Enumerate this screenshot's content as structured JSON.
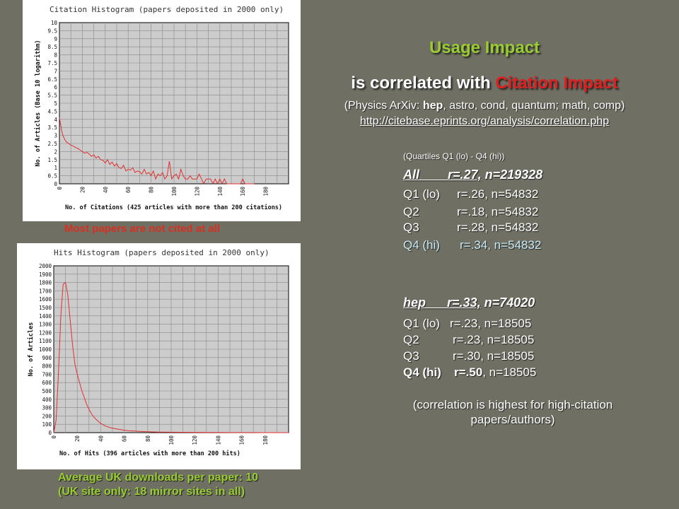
{
  "chart_data": [
    {
      "type": "line",
      "title": "Citation Histogram (papers deposited in 2000 only)",
      "xlabel": "No. of Citations (425 articles with more than 200 citations)",
      "ylabel": "No. of Articles (Base 10 logarithm)",
      "xlim": [
        0,
        200
      ],
      "ylim": [
        0,
        10
      ],
      "xticks": [
        "0",
        "20",
        "40",
        "60",
        "80",
        "100",
        "120",
        "140",
        "160",
        "180"
      ],
      "yticks": [
        "0",
        "0.5",
        "1",
        "1.5",
        "2",
        "2.5",
        "3",
        "3.5",
        "4",
        "4.5",
        "5",
        "5.5",
        "6",
        "6.5",
        "7",
        "7.5",
        "8",
        "8.5",
        "9",
        "9.5",
        "10"
      ],
      "grid": true,
      "series": [
        {
          "color": "#e03030",
          "x": [
            0,
            1,
            2,
            3,
            4,
            5,
            6,
            8,
            10,
            12,
            14,
            16,
            18,
            20,
            22,
            24,
            26,
            28,
            30,
            32,
            34,
            36,
            38,
            40,
            42,
            44,
            46,
            48,
            50,
            52,
            54,
            56,
            58,
            60,
            62,
            64,
            66,
            68,
            70,
            72,
            74,
            76,
            78,
            80,
            82,
            84,
            86,
            88,
            90,
            92,
            94,
            96,
            98,
            100,
            102,
            104,
            106,
            108,
            110,
            112,
            114,
            116,
            118,
            120,
            122,
            124,
            126,
            128,
            130,
            132,
            134,
            136,
            138,
            140,
            142,
            144,
            146,
            148,
            150,
            152,
            154,
            156,
            158,
            160,
            162,
            164,
            166,
            168,
            170
          ],
          "y": [
            4.1,
            3.7,
            3.3,
            3.0,
            2.85,
            2.7,
            2.6,
            2.5,
            2.4,
            2.35,
            2.25,
            2.2,
            2.1,
            2.0,
            1.9,
            1.95,
            1.85,
            1.7,
            1.8,
            1.6,
            1.7,
            1.5,
            1.45,
            1.3,
            1.5,
            1.2,
            1.35,
            1.1,
            1.25,
            1.0,
            0.95,
            1.15,
            0.8,
            0.9,
            0.85,
            1.0,
            0.7,
            0.8,
            0.75,
            0.6,
            0.9,
            0.6,
            0.7,
            0.5,
            0.8,
            0.3,
            0.6,
            0.5,
            0.7,
            0.3,
            0.5,
            1.4,
            0.3,
            0.5,
            0.6,
            0.3,
            0.9,
            0.5,
            0.3,
            0.3,
            0.5,
            0.3,
            0.3,
            0.3,
            0.6,
            0.3,
            0,
            0.3,
            0.3,
            0.3,
            0,
            0.3,
            0,
            0.3,
            0,
            0.3,
            0,
            0,
            0,
            0,
            0,
            0,
            0,
            0.3,
            0,
            0,
            0,
            0,
            0
          ]
        }
      ]
    },
    {
      "type": "line",
      "title": "Hits Histogram (papers deposited in 2000 only)",
      "xlabel": "No. of Hits (396 articles with more than 200 hits)",
      "ylabel": "No. of Articles",
      "xlim": [
        0,
        200
      ],
      "ylim": [
        0,
        2000
      ],
      "xticks": [
        "0",
        "20",
        "40",
        "60",
        "80",
        "100",
        "120",
        "140",
        "160",
        "180"
      ],
      "yticks": [
        "0",
        "100",
        "200",
        "300",
        "400",
        "500",
        "600",
        "700",
        "800",
        "900",
        "1000",
        "1100",
        "1200",
        "1300",
        "1400",
        "1500",
        "1600",
        "1700",
        "1800",
        "1900",
        "2000"
      ],
      "grid": true,
      "series": [
        {
          "color": "#e03030",
          "x": [
            0,
            2,
            4,
            6,
            8,
            10,
            12,
            14,
            16,
            18,
            20,
            22,
            24,
            26,
            28,
            30,
            32,
            34,
            36,
            38,
            40,
            44,
            48,
            52,
            56,
            60,
            64,
            68,
            72,
            76,
            80,
            90,
            100,
            110,
            120,
            130,
            140,
            150,
            160,
            170,
            180,
            190,
            200
          ],
          "y": [
            0,
            150,
            700,
            1400,
            1780,
            1800,
            1650,
            1350,
            1050,
            820,
            700,
            600,
            500,
            420,
            340,
            280,
            230,
            190,
            160,
            135,
            110,
            80,
            60,
            48,
            38,
            30,
            24,
            20,
            16,
            13,
            10,
            7,
            5,
            4,
            3,
            2,
            2,
            1,
            1,
            1,
            0,
            0,
            0
          ]
        }
      ]
    }
  ],
  "captions": {
    "citation": "Most papers are not cited at all",
    "downloads_line1": "Average UK downloads per paper: 10",
    "downloads_line2": "(UK site only: 18 mirror sites in all)"
  },
  "heading": {
    "line1": "Usage Impact",
    "line2_prefix": "is correlated with ",
    "line2_highlight": "Citation Impact",
    "subtitle_prefix": "(Physics ArXiv: ",
    "subtitle_bold": "hep",
    "subtitle_suffix": ", astro, cond, quantum; math, comp)",
    "link": "http://citebase.eprints.org/analysis/correlation.php"
  },
  "stats": {
    "quartile_note": "(Quartiles Q1 (lo) - Q4 (hi))",
    "all": {
      "label": "All",
      "r": "r=.27,",
      "n": "n=219328"
    },
    "all_rows": [
      {
        "label": "Q1 (lo)",
        "value": "r=.26, n=54832"
      },
      {
        "label": "Q2",
        "value": "r=.18, n=54832"
      },
      {
        "label": "Q3",
        "value": "r=.28, n=54832"
      },
      {
        "label": "Q4 (hi)",
        "value": "r=.34, n=54832"
      }
    ],
    "hep": {
      "label": "hep",
      "r": "r=.33,",
      "n": "n=74020"
    },
    "hep_rows": [
      {
        "label": "Q1 (lo)",
        "value": "r=.23, n=18505"
      },
      {
        "label": "Q2",
        "value": "r=.23, n=18505"
      },
      {
        "label": "Q3",
        "value": "r=.30, n=18505"
      },
      {
        "label": "Q4 (hi)",
        "value_bold": "r=.50",
        "value_rest": ", n=18505"
      }
    ],
    "note": "(correlation is highest for high-citation papers/authors)"
  }
}
